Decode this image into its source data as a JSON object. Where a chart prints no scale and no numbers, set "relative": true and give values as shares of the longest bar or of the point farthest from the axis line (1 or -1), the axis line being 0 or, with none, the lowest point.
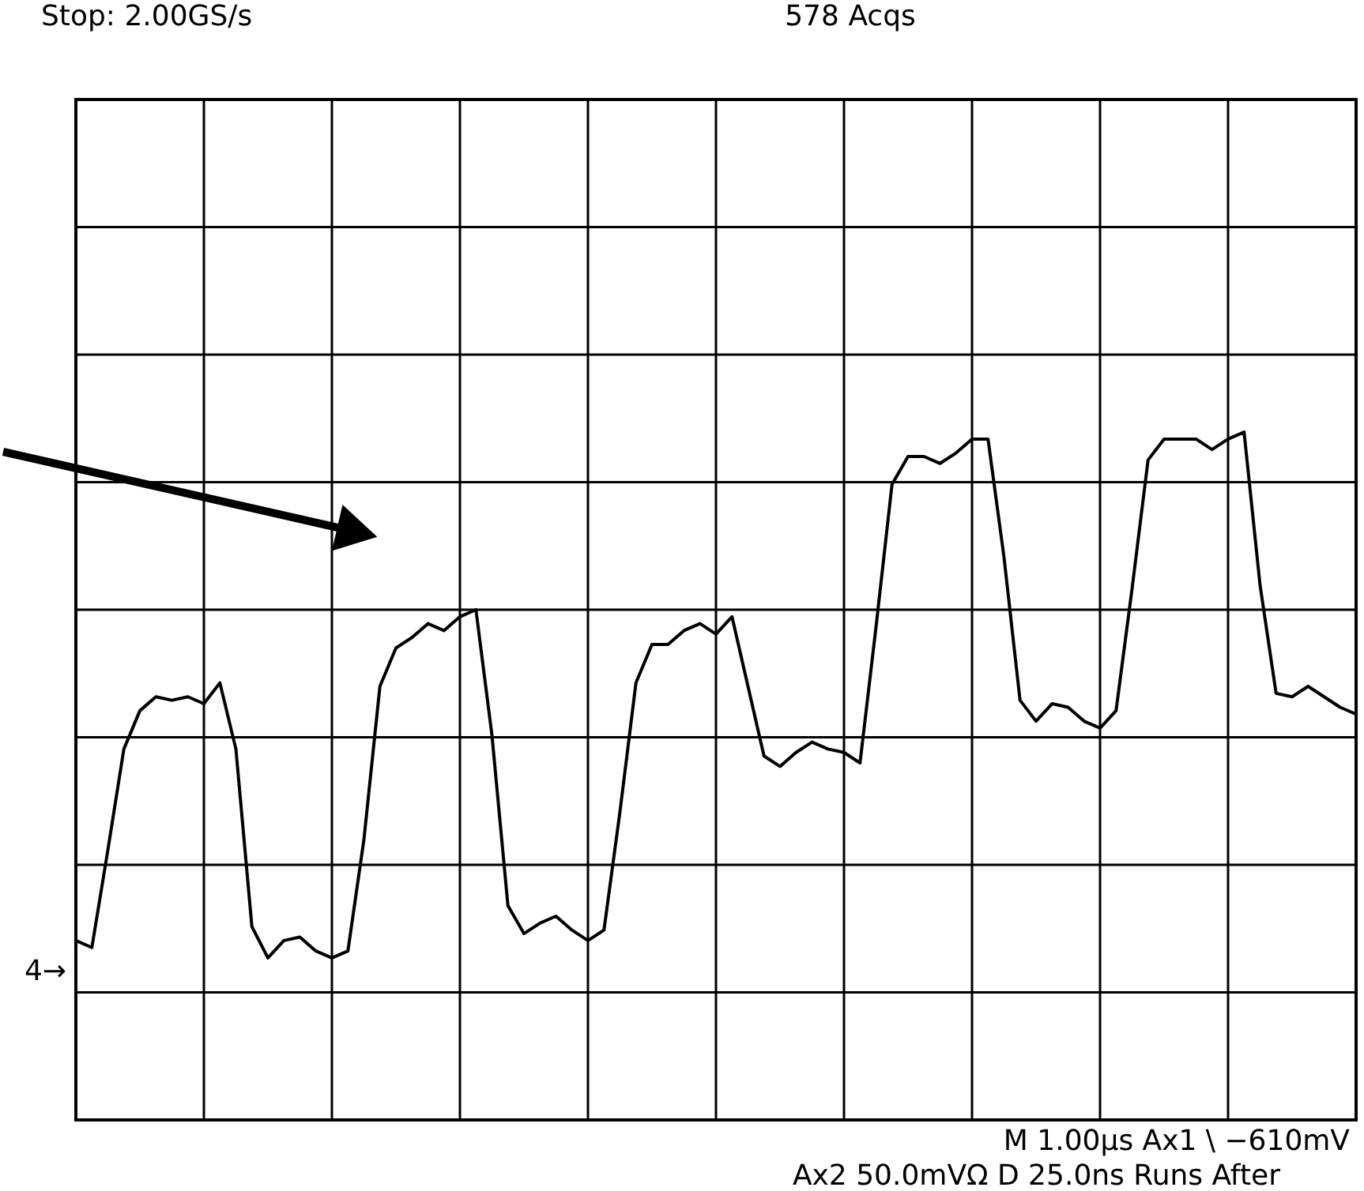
{
  "chart_data": {
    "type": "line",
    "title": "Stop: 2.00GS/s",
    "annotations": [
      "578 Acqs",
      "M 1.00µs  Ax1 \\  −610mV",
      "Ax2  50.0mVΩ  D 25.0ns  Runs After",
      "4→"
    ],
    "categories": [
      null,
      null,
      null,
      null,
      null,
      null,
      null,
      null,
      null,
      null,
      null,
      null,
      null,
      null,
      null,
      null,
      null,
      null,
      null,
      null,
      null,
      null,
      null,
      null,
      null,
      null,
      null,
      null,
      null,
      null,
      null,
      null,
      null,
      null,
      null,
      null,
      null,
      null,
      null,
      null,
      null,
      null,
      null,
      null,
      null,
      null,
      null,
      null,
      null,
      null,
      null,
      null,
      null,
      null,
      null,
      null,
      null,
      null,
      null,
      null,
      null,
      null,
      null,
      null,
      null,
      null,
      null,
      null,
      null,
      null,
      null,
      null,
      null,
      null,
      null,
      null,
      null,
      null,
      null,
      null,
      null
    ],
    "relative": true,
    "series": [
      {
        "color": "#000000",
        "values": [
          -0.95,
          -0.97,
          -0.69,
          -0.4,
          -0.29,
          -0.25,
          -0.26,
          -0.25,
          -0.27,
          -0.21,
          -0.4,
          -0.91,
          -1,
          -0.95,
          -0.94,
          -0.98,
          -1,
          -0.98,
          -0.66,
          -0.22,
          -0.11,
          -0.08,
          -0.04,
          -0.06,
          -0.02,
          0.0,
          -0.36,
          -0.85,
          -0.93,
          -0.9,
          -0.88,
          -0.92,
          -0.95,
          -0.92,
          -0.58,
          -0.21,
          -0.1,
          -0.1,
          -0.06,
          -0.04,
          -0.07,
          -0.02,
          -0.22,
          -0.42,
          -0.45,
          -0.41,
          -0.38,
          -0.4,
          -0.41,
          -0.44,
          -0.05,
          0.36,
          0.44,
          0.44,
          0.42,
          0.45,
          0.49,
          0.49,
          0.15,
          -0.26,
          -0.32,
          -0.27,
          -0.28,
          -0.32,
          -0.34,
          -0.29,
          0.06,
          0.43,
          0.49,
          0.49,
          0.49,
          0.46,
          0.49,
          0.51,
          0.07,
          -0.24,
          -0.25,
          -0.22,
          -0.25,
          -0.28,
          -0.3
        ]
      }
    ],
    "grid": true,
    "marker": "none",
    "line_style": "solid"
  }
}
